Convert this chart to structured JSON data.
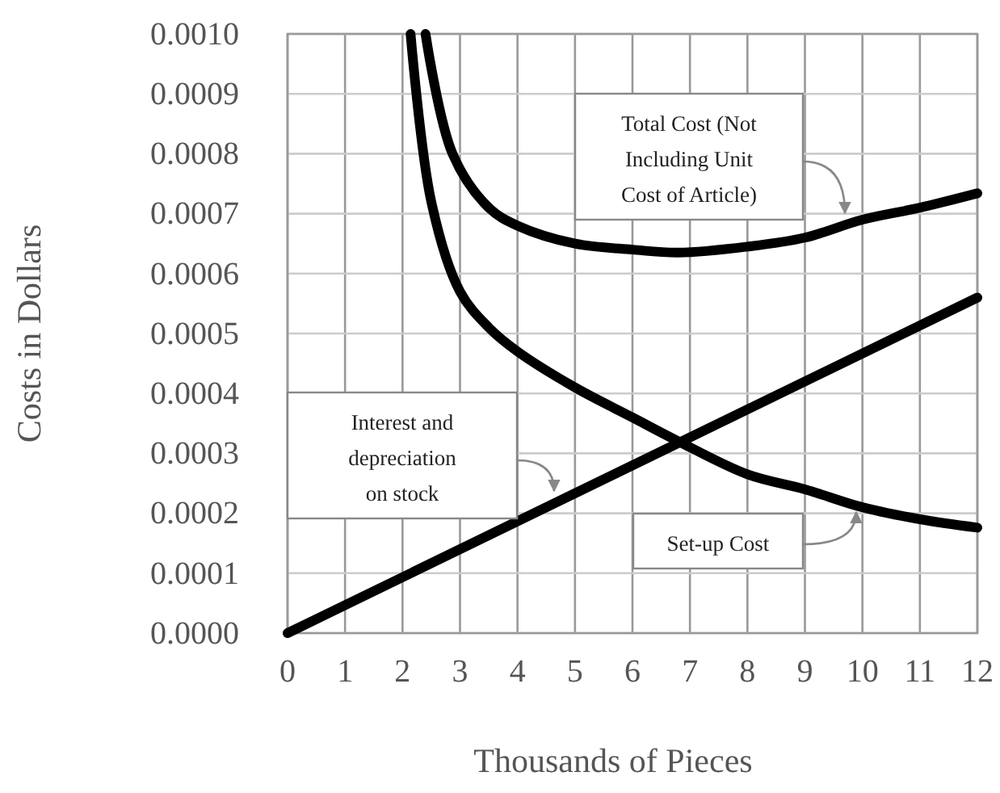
{
  "chart_data": {
    "type": "line",
    "xlabel": "Thousands of Pieces",
    "ylabel": "Costs in Dollars",
    "xlim": [
      0,
      12
    ],
    "xticks": [
      0,
      1,
      2,
      3,
      4,
      5,
      6,
      7,
      8,
      9,
      10,
      11,
      12
    ],
    "ylim": [
      0,
      0.001
    ],
    "yticks": [
      {
        "value": 0,
        "label": "0.0000"
      },
      {
        "value": 0.0001,
        "label": "0.0001"
      },
      {
        "value": 0.0002,
        "label": "0.0002"
      },
      {
        "value": 0.0003,
        "label": "0.0003"
      },
      {
        "value": 0.0004,
        "label": "0.0004"
      },
      {
        "value": 0.0005,
        "label": "0.0005"
      },
      {
        "value": 0.0006,
        "label": "0.0006"
      },
      {
        "value": 0.0007,
        "label": "0.0007"
      },
      {
        "value": 0.0008,
        "label": "0.0008"
      },
      {
        "value": 0.0009,
        "label": "0.0009"
      },
      {
        "value": 0.001,
        "label": "0.0010"
      }
    ],
    "grid": true,
    "marker": "none",
    "line_style": "solid",
    "series": [
      {
        "color": "#000000",
        "x": [
          0,
          12
        ],
        "values": [
          0,
          0.00056
        ]
      },
      {
        "color": "#000000",
        "x": [
          2.14,
          2.5,
          3,
          3.5,
          4,
          5,
          6,
          6.8,
          8,
          9,
          10,
          11,
          12
        ],
        "values": [
          0.001,
          0.00072,
          0.00057,
          0.00051,
          0.00047,
          0.00041,
          0.00036,
          0.00032,
          0.000265,
          0.00024,
          0.00021,
          0.00019,
          0.000176
        ]
      },
      {
        "color": "#000000",
        "x": [
          2.4,
          2.87,
          3.5,
          4,
          5,
          6,
          6.8,
          8,
          9,
          10,
          11,
          12
        ],
        "values": [
          0.001,
          0.0008,
          0.00071,
          0.00068,
          0.00065,
          0.00064,
          0.000635,
          0.000645,
          0.00066,
          0.00069,
          0.00071,
          0.000734
        ]
      }
    ],
    "annotations": [
      "Total Cost (Not Including Unit Cost of Article)",
      "Interest and depreciation on stock",
      "Set-up Cost"
    ]
  }
}
